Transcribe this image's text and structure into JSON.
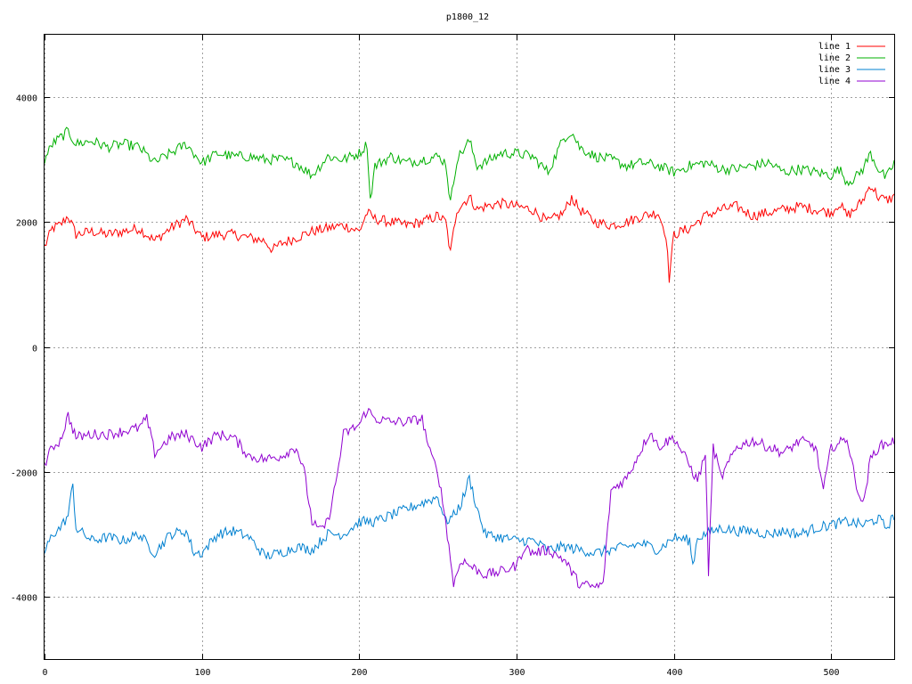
{
  "chart_data": {
    "type": "line",
    "title": "p1800_12",
    "xlabel": "",
    "ylabel": "",
    "xlim": [
      0,
      540
    ],
    "ylim": [
      -5000,
      5000
    ],
    "xticks": [
      0,
      100,
      200,
      300,
      400,
      500
    ],
    "yticks": [
      -4000,
      -2000,
      0,
      2000,
      4000
    ],
    "grid": true,
    "legend_position": "top-right",
    "series": [
      {
        "name": "line 1",
        "color": "#ff0000",
        "x": [
          0,
          5,
          10,
          15,
          20,
          30,
          40,
          50,
          60,
          70,
          80,
          90,
          100,
          110,
          120,
          130,
          140,
          145,
          150,
          160,
          170,
          180,
          190,
          200,
          205,
          210,
          220,
          230,
          240,
          250,
          255,
          258,
          262,
          270,
          275,
          280,
          290,
          300,
          310,
          320,
          330,
          335,
          340,
          350,
          360,
          370,
          380,
          390,
          395,
          397,
          400,
          410,
          420,
          430,
          440,
          450,
          460,
          470,
          480,
          490,
          500,
          505,
          510,
          515,
          520,
          525,
          530,
          535,
          540
        ],
        "y": [
          1600,
          1900,
          1950,
          2100,
          1800,
          1850,
          1800,
          1850,
          1900,
          1700,
          1900,
          2050,
          1750,
          1800,
          1800,
          1750,
          1700,
          1550,
          1650,
          1750,
          1850,
          1900,
          1950,
          1850,
          2150,
          2050,
          2000,
          1950,
          2000,
          2100,
          2000,
          1500,
          2200,
          2400,
          2200,
          2250,
          2300,
          2250,
          2200,
          2000,
          2150,
          2400,
          2200,
          2000,
          1950,
          2000,
          2100,
          2150,
          1800,
          1100,
          1800,
          1900,
          2100,
          2200,
          2250,
          2100,
          2150,
          2200,
          2250,
          2200,
          2150,
          2300,
          2100,
          2200,
          2350,
          2600,
          2400,
          2350,
          2400
        ]
      },
      {
        "name": "line 2",
        "color": "#00b000",
        "x": [
          0,
          5,
          10,
          15,
          20,
          30,
          40,
          50,
          60,
          70,
          80,
          90,
          100,
          110,
          120,
          130,
          140,
          150,
          160,
          170,
          180,
          190,
          200,
          205,
          207,
          210,
          220,
          230,
          240,
          250,
          255,
          258,
          262,
          270,
          275,
          280,
          290,
          300,
          310,
          320,
          330,
          335,
          340,
          350,
          360,
          370,
          380,
          390,
          400,
          410,
          420,
          430,
          440,
          450,
          460,
          470,
          480,
          490,
          500,
          505,
          510,
          515,
          520,
          525,
          530,
          535,
          540
        ],
        "y": [
          3000,
          3250,
          3350,
          3450,
          3250,
          3300,
          3200,
          3250,
          3200,
          2950,
          3100,
          3250,
          2950,
          3100,
          3050,
          3050,
          3000,
          3000,
          2950,
          2750,
          3050,
          3000,
          3100,
          3250,
          2350,
          2900,
          3050,
          2950,
          3000,
          3050,
          2950,
          2300,
          3000,
          3300,
          2900,
          2950,
          3100,
          3100,
          3050,
          2800,
          3350,
          3450,
          3200,
          3050,
          3000,
          2900,
          2950,
          2900,
          2800,
          2900,
          2950,
          2850,
          2850,
          2900,
          2950,
          2800,
          2850,
          2800,
          2750,
          2850,
          2650,
          2700,
          2850,
          3100,
          2850,
          2700,
          2950
        ]
      },
      {
        "name": "line 3",
        "color": "#0080d0",
        "x": [
          0,
          5,
          10,
          15,
          18,
          20,
          25,
          30,
          40,
          50,
          60,
          70,
          80,
          90,
          95,
          100,
          110,
          120,
          130,
          140,
          150,
          160,
          170,
          180,
          190,
          200,
          210,
          220,
          230,
          240,
          250,
          255,
          260,
          265,
          270,
          275,
          280,
          290,
          300,
          310,
          320,
          330,
          340,
          350,
          360,
          370,
          380,
          390,
          400,
          410,
          412,
          415,
          420,
          430,
          440,
          450,
          460,
          470,
          480,
          490,
          500,
          510,
          520,
          530,
          535,
          540
        ],
        "y": [
          -3300,
          -3000,
          -2900,
          -2700,
          -2200,
          -2900,
          -3000,
          -3100,
          -3050,
          -3100,
          -3000,
          -3300,
          -3000,
          -2950,
          -3300,
          -3300,
          -3000,
          -2950,
          -3050,
          -3350,
          -3300,
          -3200,
          -3250,
          -3000,
          -3000,
          -2800,
          -2800,
          -2700,
          -2600,
          -2500,
          -2400,
          -2800,
          -2700,
          -2500,
          -2100,
          -2600,
          -3000,
          -3050,
          -3100,
          -3100,
          -3250,
          -3200,
          -3250,
          -3300,
          -3250,
          -3200,
          -3150,
          -3250,
          -3050,
          -3100,
          -3500,
          -3050,
          -3000,
          -2900,
          -2950,
          -2950,
          -3000,
          -2950,
          -3000,
          -2900,
          -2850,
          -2800,
          -2850,
          -2750,
          -2900,
          -2700
        ]
      },
      {
        "name": "line 4",
        "color": "#9000d0",
        "x": [
          0,
          5,
          10,
          15,
          20,
          30,
          40,
          50,
          60,
          65,
          70,
          80,
          90,
          100,
          110,
          120,
          130,
          140,
          150,
          160,
          165,
          170,
          175,
          180,
          185,
          190,
          200,
          205,
          210,
          220,
          230,
          240,
          245,
          250,
          255,
          258,
          260,
          265,
          270,
          280,
          290,
          300,
          305,
          310,
          320,
          330,
          340,
          350,
          355,
          360,
          370,
          380,
          385,
          390,
          400,
          410,
          415,
          420,
          422,
          425,
          430,
          440,
          450,
          460,
          470,
          480,
          490,
          495,
          500,
          505,
          510,
          515,
          520,
          525,
          530,
          540
        ],
        "y": [
          -1900,
          -1600,
          -1500,
          -1100,
          -1450,
          -1400,
          -1400,
          -1350,
          -1300,
          -1150,
          -1700,
          -1450,
          -1400,
          -1600,
          -1400,
          -1450,
          -1750,
          -1800,
          -1750,
          -1600,
          -2000,
          -2800,
          -2950,
          -2800,
          -2200,
          -1400,
          -1250,
          -1000,
          -1150,
          -1200,
          -1200,
          -1150,
          -1700,
          -2000,
          -2800,
          -3400,
          -3800,
          -3400,
          -3500,
          -3650,
          -3600,
          -3500,
          -3200,
          -3300,
          -3250,
          -3400,
          -3800,
          -3850,
          -3800,
          -2300,
          -2100,
          -1600,
          -1350,
          -1600,
          -1450,
          -1900,
          -2150,
          -1700,
          -3600,
          -1600,
          -2100,
          -1600,
          -1500,
          -1600,
          -1700,
          -1500,
          -1600,
          -2300,
          -1600,
          -1550,
          -1450,
          -2100,
          -2550,
          -1800,
          -1600,
          -1500
        ]
      }
    ]
  }
}
